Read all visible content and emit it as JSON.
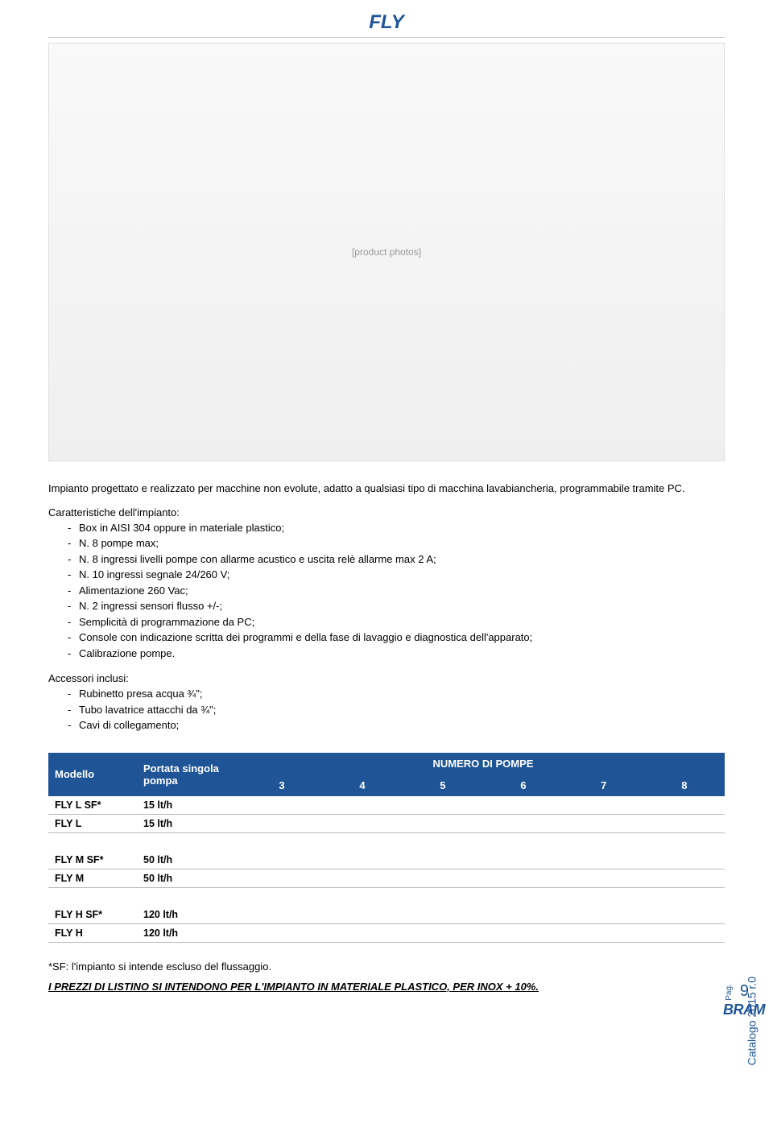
{
  "title": "FLY",
  "hero_placeholder": "[product photos]",
  "intro": "Impianto progettato e realizzato per macchine non evolute, adatto a qualsiasi tipo di macchina lavabiancheria, programmabile tramite PC.",
  "characteristics_heading": "Caratteristiche dell'impianto:",
  "characteristics": [
    "Box in AISI 304 oppure in materiale plastico;",
    "N. 8 pompe max;",
    "N. 8 ingressi livelli pompe con allarme acustico e uscita relè allarme max 2 A;",
    "N. 10 ingressi segnale 24/260 V;",
    "Alimentazione 260 Vac;",
    "N. 2 ingressi sensori flusso +/-;",
    "Semplicità di programmazione da PC;",
    "Console con indicazione scritta dei programmi e della fase di lavaggio e diagnostica dell'apparato;",
    "Calibrazione pompe."
  ],
  "accessories_heading": "Accessori inclusi:",
  "accessories": [
    "Rubinetto presa acqua ¾\";",
    "Tubo lavatrice attacchi da ¾\";",
    "Cavi di collegamento;"
  ],
  "table": {
    "header_color": "#1f5597",
    "super_header": "NUMERO DI POMPE",
    "col_model": "Modello",
    "col_rate": "Portata singola pompa",
    "pump_cols": [
      "3",
      "4",
      "5",
      "6",
      "7",
      "8"
    ],
    "groups": [
      [
        {
          "model": "FLY L SF*",
          "rate": "15 lt/h"
        },
        {
          "model": "FLY L",
          "rate": "15 lt/h"
        }
      ],
      [
        {
          "model": "FLY M SF*",
          "rate": "50 lt/h"
        },
        {
          "model": "FLY M",
          "rate": "50 lt/h"
        }
      ],
      [
        {
          "model": "FLY H SF*",
          "rate": "120 lt/h"
        },
        {
          "model": "FLY H",
          "rate": "120 lt/h"
        }
      ]
    ]
  },
  "footnote": "*SF: l'impianto si intende escluso del flussaggio.",
  "price_note": "I PREZZI DI LISTINO SI INTENDONO PER L'IMPIANTO IN MATERIALE PLASTICO, PER INOX + 10%.",
  "side_label": "Catalogo 2015  r.0",
  "page_label": "Pag.",
  "page_number": "9",
  "brand": "BRAM"
}
